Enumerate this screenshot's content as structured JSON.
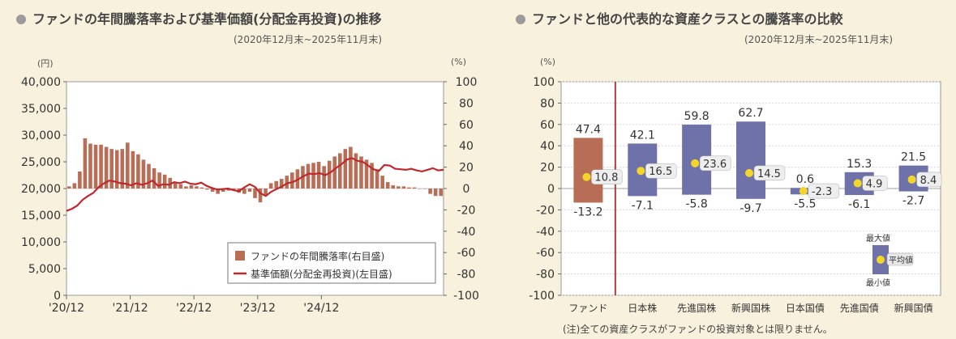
{
  "left": {
    "title": "ファンドの年間騰落率および基準価額(分配金再投資)の推移",
    "period": "(2020年12月末~2025年11月末)",
    "left_unit": "(円)",
    "right_unit": "(%)",
    "legend_bar": "ファンドの年間騰落率(右目盛)",
    "legend_line": "基準価額(分配金再投資)(左目盛)"
  },
  "right": {
    "title": "ファンドと他の代表的な資産クラスとの騰落率の比較",
    "period": "(2020年12月末~2025年11月末)",
    "unit": "(%)",
    "legend_max": "最大値",
    "legend_avg": "平均値",
    "legend_min": "最小値",
    "note": "(注)全ての資産クラスがファンドの投資対象とは限りません。"
  },
  "chart_data": [
    {
      "type": "bar+line",
      "title": "ファンドの年間騰落率および基準価額(分配金再投資)の推移",
      "x_tick_labels": [
        "'20/12",
        "'21/12",
        "'22/12",
        "'23/12",
        "'24/12"
      ],
      "y_left": {
        "label": "(円)",
        "range": [
          0,
          40000
        ],
        "ticks": [
          "0",
          "5,000",
          "10,000",
          "15,000",
          "20,000",
          "25,000",
          "30,000",
          "35,000",
          "40,000"
        ]
      },
      "y_right": {
        "label": "(%)",
        "range": [
          -100,
          100
        ],
        "ticks": [
          "-100",
          "-80",
          "-60",
          "-40",
          "-20",
          "0",
          "20",
          "40",
          "60",
          "80",
          "100"
        ]
      },
      "series": [
        {
          "name": "ファンドの年間騰落率(右目盛)",
          "type": "bar",
          "axis": "right",
          "values": [
            2,
            5,
            16,
            47,
            42,
            41,
            41,
            39,
            37,
            36,
            37,
            43,
            35,
            32,
            27,
            23,
            19,
            15,
            13,
            10,
            6,
            4,
            2,
            3,
            2,
            1,
            -1,
            -3,
            -5,
            -3,
            -2,
            -1,
            -4,
            -5,
            -3,
            -9,
            -13,
            -6,
            5,
            7,
            9,
            12,
            15,
            18,
            21,
            23,
            24,
            25,
            21,
            26,
            30,
            33,
            37,
            39,
            33,
            30,
            27,
            24,
            18,
            12,
            6,
            3,
            2,
            2,
            1,
            1,
            0,
            0,
            -5,
            -7,
            -7
          ]
        },
        {
          "name": "基準価額(分配金再投資)(左目盛)",
          "type": "line",
          "axis": "left",
          "values": [
            15800,
            16200,
            16800,
            17900,
            18600,
            19200,
            20300,
            21000,
            21500,
            21300,
            21000,
            20900,
            20600,
            21000,
            20700,
            21000,
            21500,
            20500,
            20800,
            20700,
            21200,
            21000,
            21300,
            20900,
            20800,
            21100,
            20500,
            20100,
            19800,
            19900,
            20000,
            19700,
            19500,
            20200,
            20800,
            20300,
            19100,
            18600,
            19400,
            19900,
            20400,
            21000,
            21200,
            21700,
            22300,
            22800,
            22700,
            22900,
            22500,
            23000,
            23800,
            24500,
            25400,
            25700,
            25200,
            25000,
            24300,
            23600,
            23300,
            24400,
            24300,
            23700,
            23600,
            23500,
            23700,
            23400,
            23200,
            23500,
            23800,
            23400,
            23500
          ]
        }
      ],
      "legend_position": "bottom-right"
    },
    {
      "type": "range-bar",
      "title": "ファンドと他の代表的な資産クラスとの騰落率の比較",
      "categories": [
        "ファンド",
        "日本株",
        "先進国株",
        "新興国株",
        "日本国債",
        "先進国債",
        "新興国債"
      ],
      "max": [
        47.4,
        42.1,
        59.8,
        62.7,
        0.6,
        15.3,
        21.5
      ],
      "avg": [
        10.8,
        16.5,
        23.6,
        14.5,
        -2.3,
        4.9,
        8.4
      ],
      "min": [
        -13.2,
        -7.1,
        -5.8,
        -9.7,
        -5.5,
        -6.1,
        -2.7
      ],
      "y_range": [
        -100,
        100
      ],
      "y_ticks": [
        "-100",
        "-80",
        "-60",
        "-40",
        "-20",
        "0",
        "20",
        "40",
        "60",
        "80",
        "100"
      ],
      "colors": {
        "fund": "#b86e56",
        "others": "#6e72a8",
        "avg_marker": "#f3d629",
        "divider": "#b53a3a"
      }
    }
  ]
}
